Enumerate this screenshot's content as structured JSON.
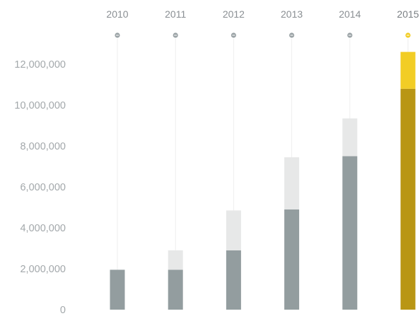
{
  "chart_data": {
    "type": "bar",
    "stacked": true,
    "categories": [
      "2010",
      "2011",
      "2012",
      "2013",
      "2014",
      "2015"
    ],
    "active_category": "2015",
    "series": [
      {
        "values": [
          1950000,
          1950000,
          2900000,
          4900000,
          7500000,
          10800000
        ]
      },
      {
        "values": [
          0,
          950000,
          1950000,
          2550000,
          1850000,
          1800000
        ]
      }
    ],
    "yticks": [
      0,
      2000000,
      4000000,
      6000000,
      8000000,
      10000000,
      12000000
    ],
    "ytick_labels": [
      "0",
      "2,000,000",
      "4,000,000",
      "6,000,000",
      "8,000,000",
      "10,000,000",
      "12,000,000"
    ],
    "ylim": [
      0,
      12600000
    ],
    "xaxis_position": "top",
    "grid": false,
    "colors": {
      "base": "#939d9f",
      "top": "#e7e8e8",
      "active_base": "#b99614",
      "active_top": "#f2cd25",
      "dot": "#9ba3a6",
      "active_dot": "#f2cd25",
      "guide": "#eeeeee"
    }
  }
}
